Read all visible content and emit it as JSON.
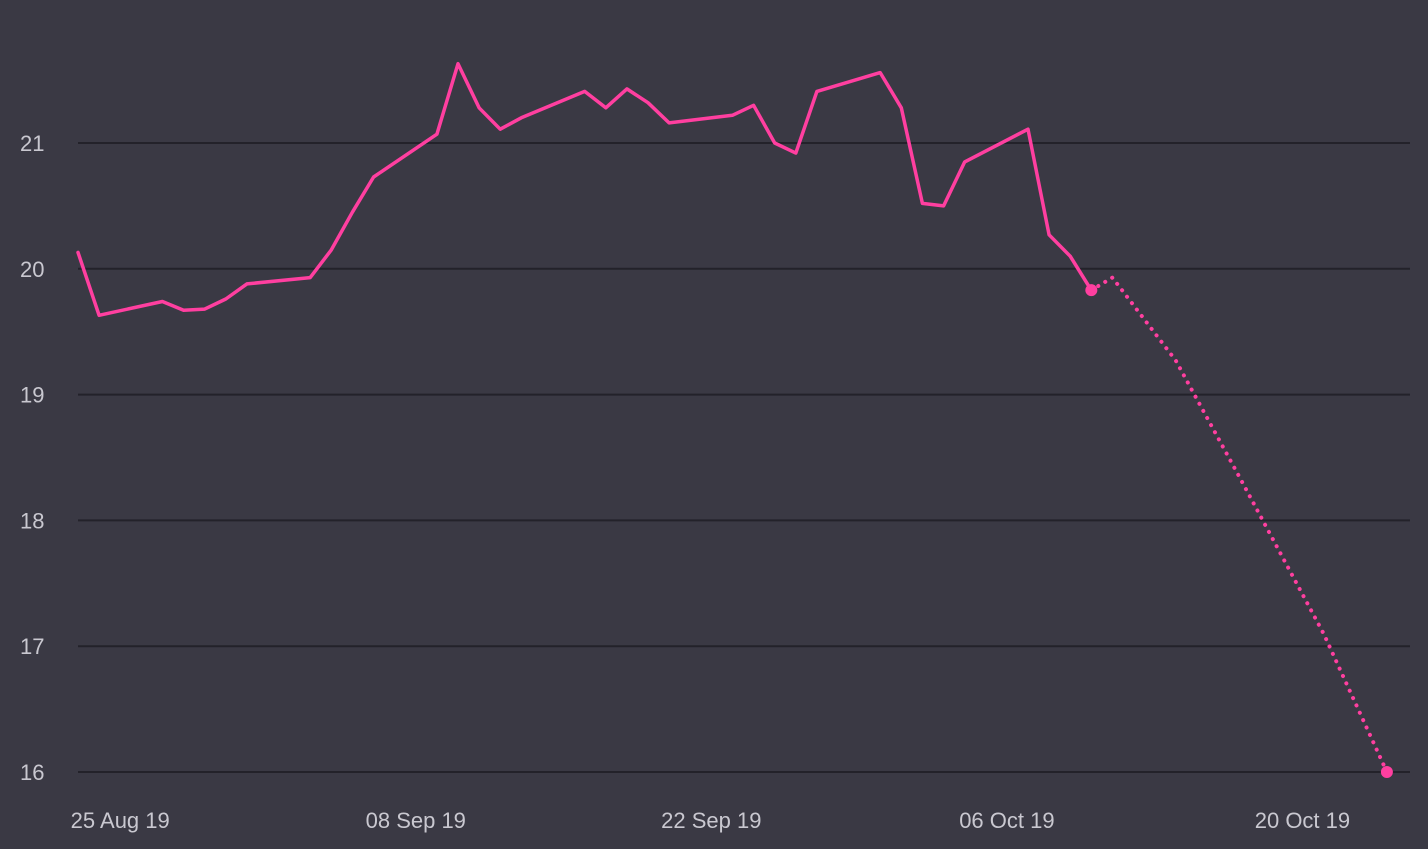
{
  "chart_data": {
    "type": "line",
    "xlabel": "",
    "ylabel": "",
    "ylim": [
      16,
      21.5
    ],
    "xlim": [
      "2019-08-23",
      "2019-10-25"
    ],
    "grid": true,
    "colors": {
      "background": "#3a3944",
      "grid": "#23222a",
      "series": "#ff3fa0",
      "tick_text": "#c9c8d0"
    },
    "yticks": [
      {
        "value": 16,
        "label": "16"
      },
      {
        "value": 17,
        "label": "17"
      },
      {
        "value": 18,
        "label": "18"
      },
      {
        "value": 19,
        "label": "19"
      },
      {
        "value": 20,
        "label": "20"
      },
      {
        "value": 21,
        "label": "21"
      }
    ],
    "xticks": [
      {
        "date": "2019-08-25",
        "label": "25 Aug 19"
      },
      {
        "date": "2019-09-08",
        "label": "08 Sep 19"
      },
      {
        "date": "2019-09-22",
        "label": "22 Sep 19"
      },
      {
        "date": "2019-10-06",
        "label": "06 Oct 19"
      },
      {
        "date": "2019-10-20",
        "label": "20 Oct 19"
      }
    ],
    "series": [
      {
        "style": "solid",
        "points": [
          {
            "x": "2019-08-23",
            "y": 20.13
          },
          {
            "x": "2019-08-24",
            "y": 19.63
          },
          {
            "x": "2019-08-27",
            "y": 19.74
          },
          {
            "x": "2019-08-28",
            "y": 19.67
          },
          {
            "x": "2019-08-29",
            "y": 19.68
          },
          {
            "x": "2019-08-30",
            "y": 19.76
          },
          {
            "x": "2019-08-31",
            "y": 19.88
          },
          {
            "x": "2019-09-03",
            "y": 19.93
          },
          {
            "x": "2019-09-04",
            "y": 20.15
          },
          {
            "x": "2019-09-05",
            "y": 20.45
          },
          {
            "x": "2019-09-06",
            "y": 20.73
          },
          {
            "x": "2019-09-09",
            "y": 21.07
          },
          {
            "x": "2019-09-10",
            "y": 21.63
          },
          {
            "x": "2019-09-11",
            "y": 21.28
          },
          {
            "x": "2019-09-12",
            "y": 21.11
          },
          {
            "x": "2019-09-13",
            "y": 21.2
          },
          {
            "x": "2019-09-16",
            "y": 21.41
          },
          {
            "x": "2019-09-17",
            "y": 21.28
          },
          {
            "x": "2019-09-18",
            "y": 21.43
          },
          {
            "x": "2019-09-19",
            "y": 21.32
          },
          {
            "x": "2019-09-20",
            "y": 21.16
          },
          {
            "x": "2019-09-23",
            "y": 21.22
          },
          {
            "x": "2019-09-24",
            "y": 21.3
          },
          {
            "x": "2019-09-25",
            "y": 21.0
          },
          {
            "x": "2019-09-26",
            "y": 20.92
          },
          {
            "x": "2019-09-27",
            "y": 21.41
          },
          {
            "x": "2019-09-30",
            "y": 21.56
          },
          {
            "x": "2019-10-01",
            "y": 21.28
          },
          {
            "x": "2019-10-02",
            "y": 20.52
          },
          {
            "x": "2019-10-03",
            "y": 20.5
          },
          {
            "x": "2019-10-04",
            "y": 20.85
          },
          {
            "x": "2019-10-07",
            "y": 21.11
          },
          {
            "x": "2019-10-08",
            "y": 20.27
          },
          {
            "x": "2019-10-09",
            "y": 20.1
          },
          {
            "x": "2019-10-10",
            "y": 19.83
          }
        ]
      },
      {
        "style": "dotted",
        "points": [
          {
            "x": "2019-10-10",
            "y": 19.83
          },
          {
            "x": "2019-10-11",
            "y": 19.93
          },
          {
            "x": "2019-10-14",
            "y": 19.27
          },
          {
            "x": "2019-10-17",
            "y": 18.35
          },
          {
            "x": "2019-10-21",
            "y": 17.1
          },
          {
            "x": "2019-10-24",
            "y": 16.0
          }
        ]
      }
    ],
    "markers": [
      {
        "x": "2019-10-10",
        "y": 19.83
      },
      {
        "x": "2019-10-24",
        "y": 16.0
      }
    ]
  }
}
